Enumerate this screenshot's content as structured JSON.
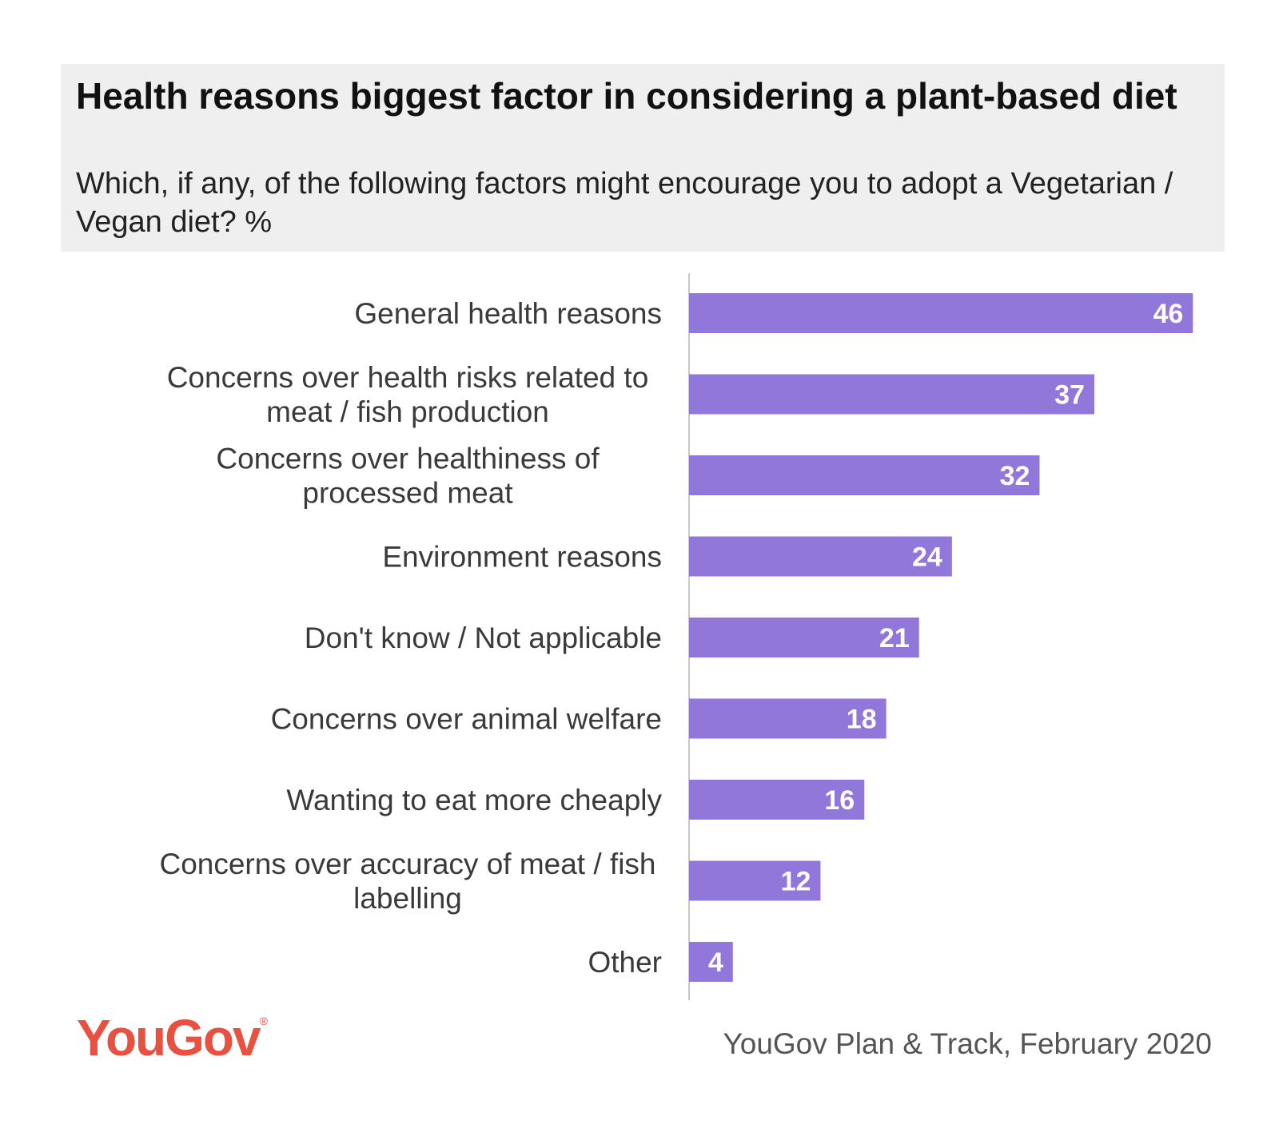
{
  "header": {
    "title": "Health reasons biggest factor in considering a plant-based diet",
    "subtitle": "Which, if any, of the following factors might encourage you to adopt a Vegetarian / Vegan diet? %"
  },
  "footer": {
    "logo": "YouGov",
    "logo_mark": "®",
    "source": "YouGov Plan & Track, February 2020"
  },
  "colors": {
    "bar": "#9177d9",
    "brand": "#e8503f"
  },
  "chart_data": {
    "type": "bar",
    "orientation": "horizontal",
    "categories": [
      [
        "General health reasons"
      ],
      [
        "Concerns over health risks related to",
        "meat / fish production"
      ],
      [
        "Concerns over healthiness of",
        "processed meat"
      ],
      [
        "Environment reasons"
      ],
      [
        "Don't know / Not applicable"
      ],
      [
        "Concerns over animal welfare"
      ],
      [
        "Wanting to eat more cheaply"
      ],
      [
        "Concerns over accuracy of meat / fish",
        "labelling"
      ],
      [
        "Other"
      ]
    ],
    "values": [
      46,
      37,
      32,
      24,
      21,
      18,
      16,
      12,
      4
    ],
    "xlim": [
      0,
      47
    ],
    "data_labels": true,
    "grid": false,
    "legend": "none"
  }
}
